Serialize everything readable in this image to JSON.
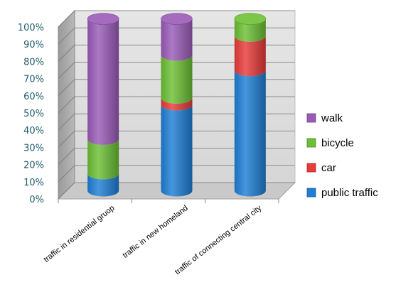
{
  "chart_data": {
    "type": "bar",
    "stacked": true,
    "style": "3d-cylinder",
    "categories": [
      "traffic in residential gruop",
      "traffic in new homeland",
      "traffic of connecting central city"
    ],
    "series": [
      {
        "name": "public traffic",
        "color": "#1f7fd6",
        "values": [
          10,
          50,
          70
        ]
      },
      {
        "name": "car",
        "color": "#e83b3b",
        "values": [
          0,
          4,
          20
        ]
      },
      {
        "name": "bicycle",
        "color": "#6dc034",
        "values": [
          20,
          25,
          10
        ]
      },
      {
        "name": "walk",
        "color": "#9a5bb8",
        "values": [
          70,
          21,
          0
        ]
      }
    ],
    "y_ticks": [
      "0%",
      "10%",
      "20%",
      "30%",
      "40%",
      "50%",
      "60%",
      "70%",
      "80%",
      "90%",
      "100%"
    ],
    "ylim": [
      0,
      100
    ],
    "grid": true,
    "legend_position": "right",
    "legend_order": [
      "walk",
      "bicycle",
      "car",
      "public traffic"
    ]
  }
}
